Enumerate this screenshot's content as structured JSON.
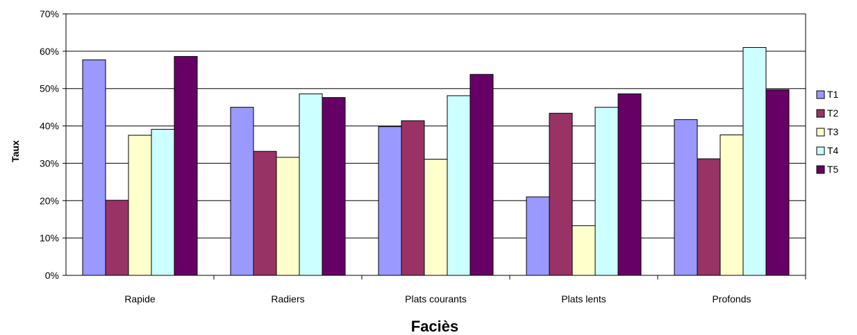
{
  "chart_data": {
    "type": "bar",
    "title": "",
    "xlabel": "Faciès",
    "ylabel": "Taux",
    "categories": [
      "Rapide",
      "Radiers",
      "Plats courants",
      "Plats lents",
      "Profonds"
    ],
    "series": [
      {
        "name": "T1",
        "color": "#9999FF",
        "values": [
          57.7,
          45.0,
          39.8,
          21.0,
          41.7
        ]
      },
      {
        "name": "T2",
        "color": "#993366",
        "values": [
          20.1,
          33.2,
          41.4,
          43.4,
          31.2
        ]
      },
      {
        "name": "T3",
        "color": "#FFFFCC",
        "values": [
          37.5,
          31.6,
          31.1,
          13.3,
          37.6
        ]
      },
      {
        "name": "T4",
        "color": "#CCFFFF",
        "values": [
          39.1,
          48.6,
          48.1,
          45.0,
          61.0
        ]
      },
      {
        "name": "T5",
        "color": "#660066",
        "values": [
          58.6,
          47.6,
          53.8,
          48.6,
          49.7
        ]
      }
    ],
    "ylim": [
      0,
      70
    ],
    "yticks": [
      "0%",
      "10%",
      "20%",
      "30%",
      "40%",
      "50%",
      "60%",
      "70%"
    ],
    "grid": true,
    "legend": "right"
  }
}
